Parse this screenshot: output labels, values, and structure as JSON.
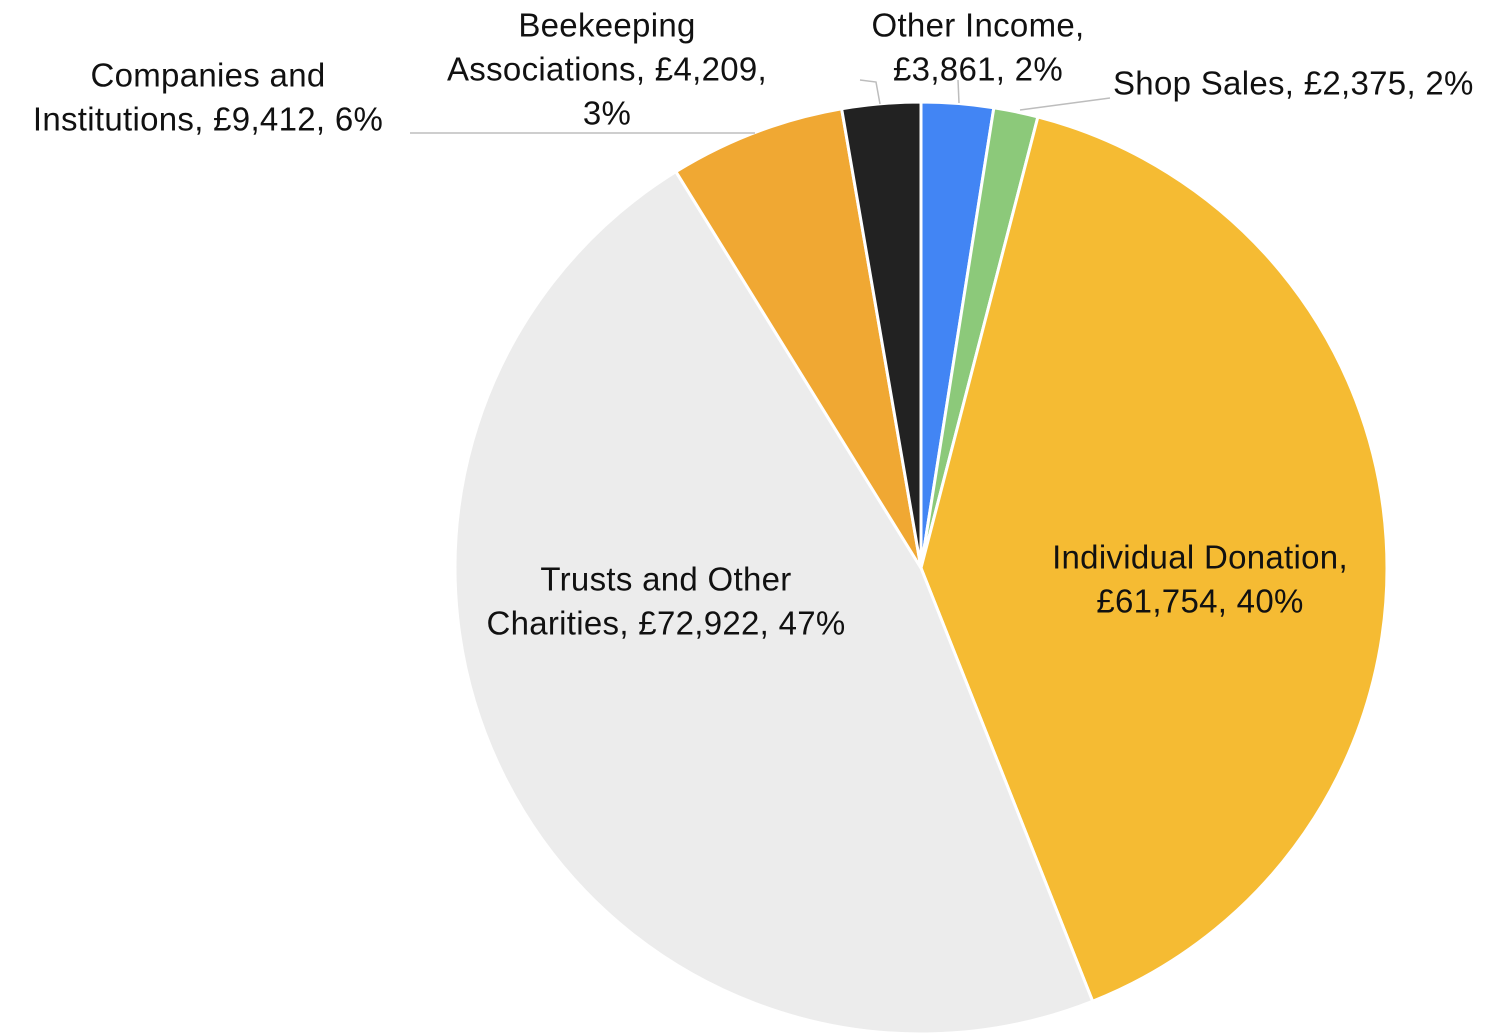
{
  "chart_data": {
    "type": "pie",
    "title": "",
    "start_angle_deg": 0,
    "direction": "clockwise",
    "slices": [
      {
        "name": "Other Income",
        "value": 3861,
        "value_label": "£3,861",
        "percent_label": "2%",
        "color": "#4285f4",
        "label_lines": [
          "Other Income,",
          "£3,861, 2%"
        ],
        "label_placement": "outside"
      },
      {
        "name": "Shop Sales",
        "value": 2375,
        "value_label": "£2,375",
        "percent_label": "2%",
        "color": "#8cc97a",
        "label_lines": [
          "Shop Sales, £2,375, 2%"
        ],
        "label_placement": "outside"
      },
      {
        "name": "Individual Donation",
        "value": 61754,
        "value_label": "£61,754",
        "percent_label": "40%",
        "color": "#f5bb33",
        "label_lines": [
          "Individual Donation,",
          "£61,754, 40%"
        ],
        "label_placement": "inside"
      },
      {
        "name": "Trusts and Other Charities",
        "value": 72922,
        "value_label": "£72,922",
        "percent_label": "47%",
        "color": "#ececec",
        "label_lines": [
          "Trusts and Other",
          "Charities, £72,922, 47%"
        ],
        "label_placement": "inside"
      },
      {
        "name": "Companies and Institutions",
        "value": 9412,
        "value_label": "£9,412",
        "percent_label": "6%",
        "color": "#f0a833",
        "label_lines": [
          "Companies and",
          "Institutions, £9,412, 6%"
        ],
        "label_placement": "outside"
      },
      {
        "name": "Beekeeping Associations",
        "value": 4209,
        "value_label": "£4,209",
        "percent_label": "3%",
        "color": "#222222",
        "label_lines": [
          "Beekeeping",
          "Associations, £4,209,",
          "3%"
        ],
        "label_placement": "outside"
      }
    ]
  }
}
